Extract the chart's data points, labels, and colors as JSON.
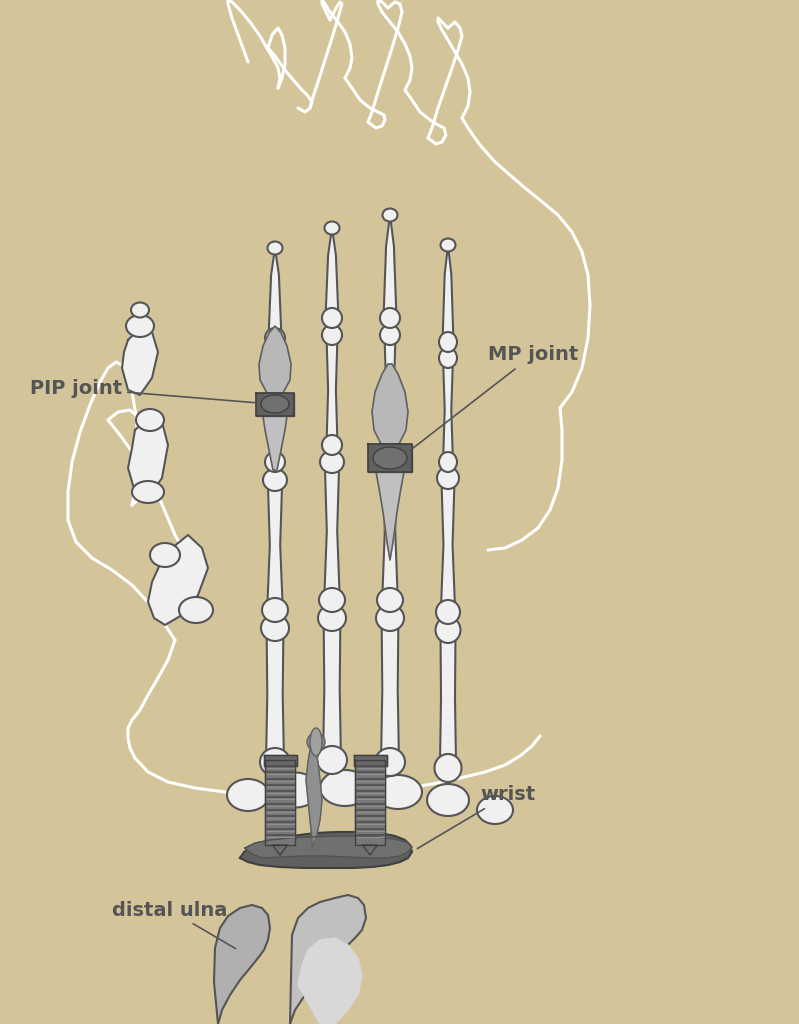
{
  "background_color": "#d4c49a",
  "bone_fill": "#f0f0f0",
  "bone_edge": "#555555",
  "bone_lw": 1.5,
  "implant_gray": "#888888",
  "implant_dark": "#555555",
  "implant_mid": "#999999",
  "implant_light": "#c0c0c0",
  "skin_col": "#ffffff",
  "skin_lw": 2.2,
  "label_color": "#555555",
  "label_pip": "PIP joint",
  "label_mp": "MP joint",
  "label_wrist": "wrist",
  "label_ulna": "distal ulna",
  "label_fs": 14,
  "fig_width": 7.99,
  "fig_height": 10.24,
  "dpi": 100
}
